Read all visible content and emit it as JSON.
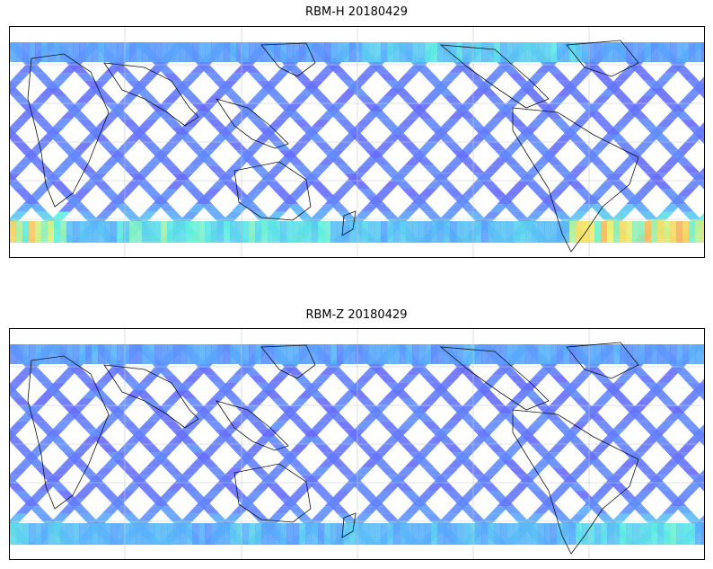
{
  "panels": [
    {
      "title": "RBM-H 20180429",
      "variable": "RBM-H",
      "date": "20180429"
    },
    {
      "title": "RBM-Z 20180429",
      "variable": "RBM-Z",
      "date": "20180429"
    }
  ],
  "colormap": {
    "name": "jet",
    "low": "#6a5cff",
    "mid_low": "#5aa8ff",
    "mid": "#5ff0e0",
    "mid_high": "#f3f06a",
    "high": "#ff5a4e"
  },
  "map": {
    "projection": "equirectangular",
    "coastlines": true,
    "gridlines": true
  }
}
